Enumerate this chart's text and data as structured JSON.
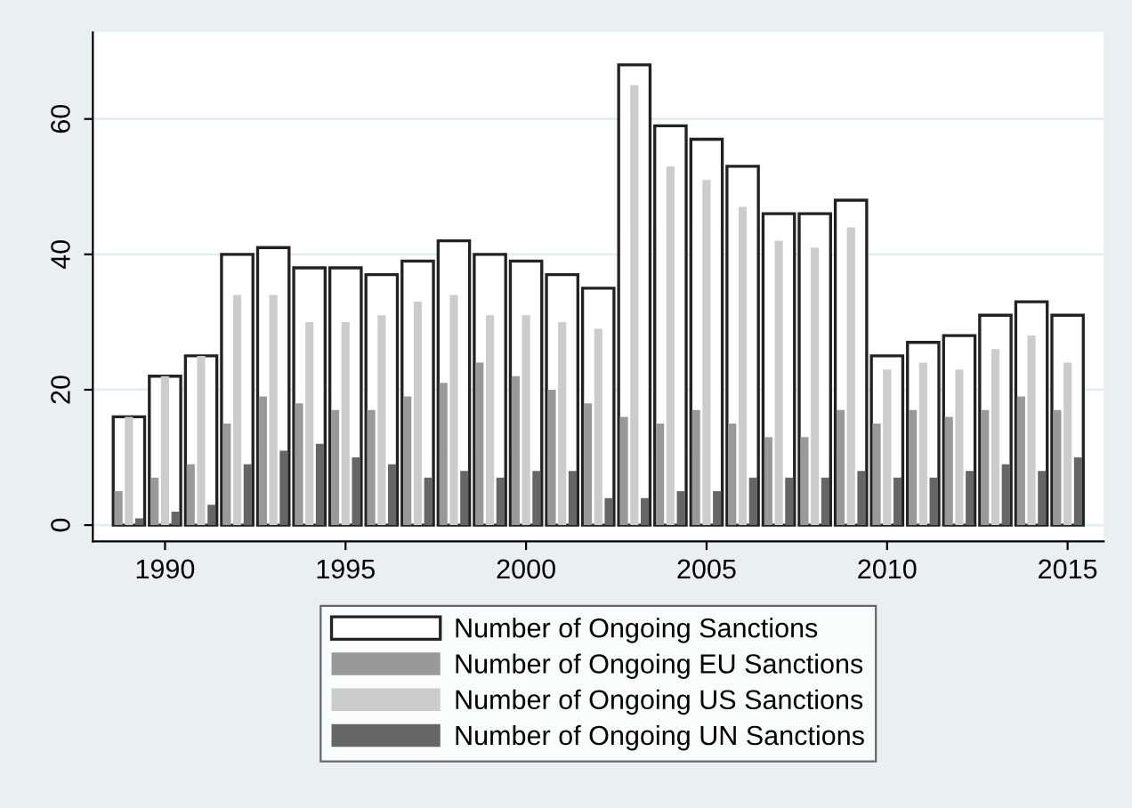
{
  "chart_data": {
    "type": "bar",
    "x": [
      1989,
      1990,
      1991,
      1992,
      1993,
      1994,
      1995,
      1996,
      1997,
      1998,
      1999,
      2000,
      2001,
      2002,
      2003,
      2004,
      2005,
      2006,
      2007,
      2008,
      2009,
      2010,
      2011,
      2012,
      2013,
      2014,
      2015
    ],
    "series": [
      {
        "name": "Number of Ongoing Sanctions",
        "color": "#ffffff",
        "values": [
          16,
          22,
          25,
          40,
          41,
          38,
          38,
          37,
          39,
          42,
          40,
          39,
          37,
          35,
          68,
          59,
          57,
          53,
          46,
          46,
          48,
          25,
          27,
          28,
          31,
          33,
          31
        ]
      },
      {
        "name": "Number of Ongoing EU Sanctions",
        "color": "#999999",
        "values": [
          5,
          7,
          9,
          15,
          19,
          18,
          17,
          17,
          19,
          21,
          24,
          22,
          20,
          18,
          16,
          15,
          17,
          15,
          13,
          13,
          17,
          15,
          17,
          16,
          17,
          19,
          17
        ]
      },
      {
        "name": "Number of Ongoing US Sanctions",
        "color": "#cccccc",
        "values": [
          16,
          22,
          25,
          34,
          34,
          30,
          30,
          31,
          33,
          34,
          31,
          31,
          30,
          29,
          65,
          53,
          51,
          47,
          42,
          41,
          44,
          23,
          24,
          23,
          26,
          28,
          24
        ]
      },
      {
        "name": "Number of Ongoing UN Sanctions",
        "color": "#666666",
        "values": [
          1,
          2,
          3,
          9,
          11,
          12,
          10,
          9,
          7,
          8,
          7,
          8,
          8,
          4,
          4,
          5,
          5,
          7,
          7,
          7,
          8,
          7,
          7,
          8,
          9,
          8,
          10
        ]
      }
    ],
    "xlim": [
      1988.0,
      2016.0
    ],
    "xticks": [
      1990,
      1995,
      2000,
      2005,
      2010,
      2015
    ],
    "ylim": [
      -2.4,
      72.8
    ],
    "yticks": [
      0,
      20,
      40,
      60
    ],
    "grid": "y",
    "legend": "bottom"
  }
}
